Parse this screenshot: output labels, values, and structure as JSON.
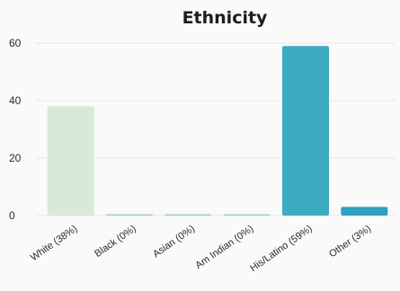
{
  "chart_data": {
    "type": "bar",
    "title": "Ethnicity",
    "xlabel": "",
    "ylabel": "",
    "categories": [
      "White (38%)",
      "Black (0%)",
      "Asian (0%)",
      "Am Indian (0%)",
      "His/Latino (59%)",
      "Other (3%)"
    ],
    "values": [
      38,
      0,
      0,
      0,
      59,
      3
    ],
    "ylim": [
      0,
      60
    ],
    "yticks": [
      0,
      20,
      40,
      60
    ],
    "colors": [
      "#d8e9d8",
      "#9fcfd7",
      "#9fcfd7",
      "#9fcfd7",
      "#3aabc1",
      "#2fa1c1"
    ],
    "grid": true,
    "legend": "none"
  }
}
